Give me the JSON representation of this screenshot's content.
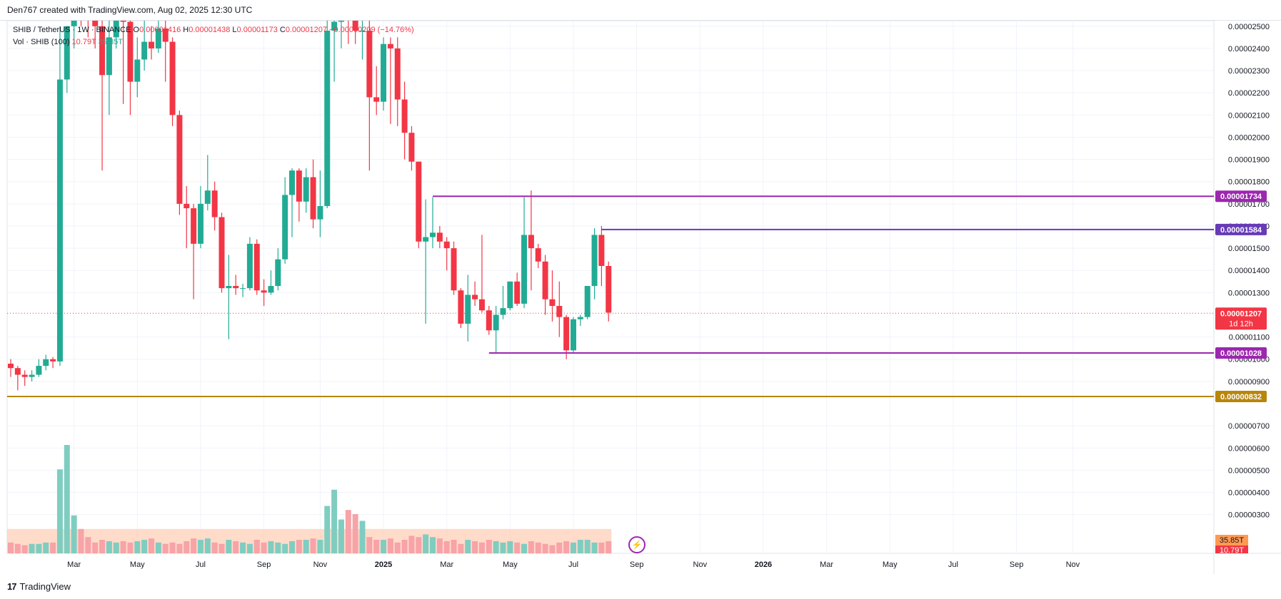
{
  "header": {
    "credit": "Den767 created with TradingView.com, Aug 02, 2025 12:30 UTC"
  },
  "legend": {
    "symbol": "SHIB / TetherUS · 1W · BINANCE",
    "o_label": "O",
    "o_value": "0.00001416",
    "h_label": "H",
    "h_value": "0.00001438",
    "l_label": "L",
    "l_value": "0.00001173",
    "c_label": "C",
    "c_value": "0.00001207",
    "change": "−0.00000209 (−14.76%)",
    "vol_label": "Vol · SHIB (100)",
    "vol_value": "10.79T",
    "vol_ma": "35.85T"
  },
  "footer": {
    "brand": "TradingView",
    "logo": "17"
  },
  "icons": {
    "flash": "lightning-icon",
    "brand": "tradingview-logo-icon"
  },
  "colors": {
    "up": "#22ab94",
    "down": "#f23645",
    "vol_up": "#7fcdc0",
    "vol_down": "#f7a3a8",
    "level_purple": "#9c27b0",
    "level_blue_purple": "#673ab7",
    "level_gold": "#b8860b",
    "current_price": "#f23645",
    "vol_ma_fill": "#ffccb3",
    "vol_ma_label": "#ff9a52"
  },
  "chart_data": {
    "type": "candlestick",
    "title": "SHIB / TetherUS · 1W · BINANCE",
    "ylim": [
      2.25e-06,
      2.525e-05
    ],
    "y_ticks": [
      "0.00000300",
      "0.00000400",
      "0.00000500",
      "0.00000600",
      "0.00000700",
      "0.00000900",
      "0.00001000",
      "0.00001100",
      "0.00001300",
      "0.00001400",
      "0.00001500",
      "0.00001600",
      "0.00001700",
      "0.00001800",
      "0.00001900",
      "0.00002000",
      "0.00002100",
      "0.00002200",
      "0.00002300",
      "0.00002400",
      "0.00002500"
    ],
    "y_tick_values": [
      3e-06,
      4e-06,
      5e-06,
      6e-06,
      7e-06,
      9e-06,
      1e-05,
      1.1e-05,
      1.3e-05,
      1.4e-05,
      1.5e-05,
      1.6e-05,
      1.7e-05,
      1.8e-05,
      1.9e-05,
      2e-05,
      2.1e-05,
      2.2e-05,
      2.3e-05,
      2.4e-05,
      2.5e-05
    ],
    "x_labels": [
      {
        "label": "Mar",
        "week": 9
      },
      {
        "label": "May",
        "week": 18
      },
      {
        "label": "Jul",
        "week": 27
      },
      {
        "label": "Sep",
        "week": 36
      },
      {
        "label": "Nov",
        "week": 44
      },
      {
        "label": "2025",
        "week": 53
      },
      {
        "label": "Mar",
        "week": 62
      },
      {
        "label": "May",
        "week": 71
      },
      {
        "label": "Jul",
        "week": 80
      },
      {
        "label": "Sep",
        "week": 89
      },
      {
        "label": "Nov",
        "week": 98
      },
      {
        "label": "2026",
        "week": 107
      },
      {
        "label": "Mar",
        "week": 116
      },
      {
        "label": "May",
        "week": 125
      },
      {
        "label": "Jul",
        "week": 134
      },
      {
        "label": "Sep",
        "week": 143
      },
      {
        "label": "Nov",
        "week": 151
      }
    ],
    "candles": [
      [
        9.8e-06,
        9.6e-06,
        9.2e-06,
        1e-05
      ],
      [
        9.6e-06,
        9.3e-06,
        8.6e-06,
        9.7e-06
      ],
      [
        9.3e-06,
        9.2e-06,
        8.8e-06,
        9.5e-06
      ],
      [
        9.2e-06,
        9.3e-06,
        9e-06,
        9.5e-06
      ],
      [
        9.3e-06,
        9.7e-06,
        9.2e-06,
        1e-05
      ],
      [
        9.7e-06,
        1e-05,
        9.5e-06,
        1.02e-05
      ],
      [
        1e-05,
        9.9e-06,
        9.6e-06,
        1.01e-05
      ],
      [
        9.9e-06,
        2.26e-05,
        9.7e-06,
        2.5e-05
      ],
      [
        2.26e-05,
        2.5e-05,
        2.2e-05,
        2.5e-05
      ],
      [
        2.5e-05,
        2.65e-05,
        2.4e-05,
        2.7e-05
      ],
      [
        2.65e-05,
        2.6e-05,
        2.5e-05,
        2.8e-05
      ],
      [
        2.6e-05,
        2.55e-05,
        2.45e-05,
        2.7e-05
      ],
      [
        2.55e-05,
        2.5e-05,
        2.4e-05,
        2.65e-05
      ],
      [
        2.5e-05,
        2.28e-05,
        1.85e-05,
        2.55e-05
      ],
      [
        2.28e-05,
        2.45e-05,
        2.1e-05,
        2.55e-05
      ],
      [
        2.45e-05,
        2.6e-05,
        2.4e-05,
        2.75e-05
      ],
      [
        2.6e-05,
        2.52e-05,
        2.15e-05,
        2.7e-05
      ],
      [
        2.52e-05,
        2.25e-05,
        2.1e-05,
        2.6e-05
      ],
      [
        2.25e-05,
        2.35e-05,
        2.18e-05,
        2.45e-05
      ],
      [
        2.35e-05,
        2.43e-05,
        2.3e-05,
        2.55e-05
      ],
      [
        2.43e-05,
        2.4e-05,
        2.35e-05,
        2.5e-05
      ],
      [
        2.4e-05,
        2.49e-05,
        2.38e-05,
        2.6e-05
      ],
      [
        2.49e-05,
        2.43e-05,
        2.25e-05,
        2.55e-05
      ],
      [
        2.43e-05,
        2.1e-05,
        2.05e-05,
        2.45e-05
      ],
      [
        2.1e-05,
        1.7e-05,
        1.65e-05,
        2.12e-05
      ],
      [
        1.7e-05,
        1.68e-05,
        1.5e-05,
        1.78e-05
      ],
      [
        1.68e-05,
        1.52e-05,
        1.27e-05,
        1.7e-05
      ],
      [
        1.52e-05,
        1.7e-05,
        1.5e-05,
        1.78e-05
      ],
      [
        1.7e-05,
        1.76e-05,
        1.67e-05,
        1.92e-05
      ],
      [
        1.76e-05,
        1.64e-05,
        1.58e-05,
        1.8e-05
      ],
      [
        1.64e-05,
        1.32e-05,
        1.3e-05,
        1.66e-05
      ],
      [
        1.32e-05,
        1.33e-05,
        1.09e-05,
        1.47e-05
      ],
      [
        1.33e-05,
        1.32e-05,
        1.29e-05,
        1.38e-05
      ],
      [
        1.32e-05,
        1.32e-05,
        1.28e-05,
        1.34e-05
      ],
      [
        1.32e-05,
        1.52e-05,
        1.31e-05,
        1.55e-05
      ],
      [
        1.52e-05,
        1.31e-05,
        1.29e-05,
        1.54e-05
      ],
      [
        1.31e-05,
        1.3e-05,
        1.24e-05,
        1.36e-05
      ],
      [
        1.3e-05,
        1.33e-05,
        1.29e-05,
        1.4e-05
      ],
      [
        1.33e-05,
        1.45e-05,
        1.31e-05,
        1.5e-05
      ],
      [
        1.45e-05,
        1.74e-05,
        1.43e-05,
        1.82e-05
      ],
      [
        1.74e-05,
        1.85e-05,
        1.55e-05,
        1.86e-05
      ],
      [
        1.85e-05,
        1.71e-05,
        1.62e-05,
        1.86e-05
      ],
      [
        1.71e-05,
        1.82e-05,
        1.66e-05,
        1.86e-05
      ],
      [
        1.82e-05,
        1.63e-05,
        1.59e-05,
        1.9e-05
      ],
      [
        1.63e-05,
        1.69e-05,
        1.55e-05,
        1.85e-05
      ],
      [
        1.69e-05,
        2.48e-05,
        1.68e-05,
        2.6e-05
      ],
      [
        2.48e-05,
        2.52e-05,
        2.25e-05,
        2.62e-05
      ],
      [
        2.52e-05,
        2.56e-05,
        2.4e-05,
        2.65e-05
      ],
      [
        2.56e-05,
        2.55e-05,
        2.42e-05,
        2.62e-05
      ],
      [
        2.55e-05,
        2.48e-05,
        2.42e-05,
        2.58e-05
      ],
      [
        2.48e-05,
        2.48e-05,
        2.35e-05,
        2.58e-05
      ],
      [
        2.48e-05,
        2.18e-05,
        1.85e-05,
        2.55e-05
      ],
      [
        2.18e-05,
        2.16e-05,
        2.1e-05,
        2.32e-05
      ],
      [
        2.16e-05,
        2.42e-05,
        2.12e-05,
        2.45e-05
      ],
      [
        2.42e-05,
        2.4e-05,
        2.06e-05,
        2.45e-05
      ],
      [
        2.4e-05,
        2.17e-05,
        2.05e-05,
        2.45e-05
      ],
      [
        2.17e-05,
        2.02e-05,
        1.9e-05,
        2.25e-05
      ],
      [
        2.02e-05,
        1.89e-05,
        1.85e-05,
        2.05e-05
      ],
      [
        1.89e-05,
        1.53e-05,
        1.5e-05,
        1.89e-05
      ],
      [
        1.53e-05,
        1.55e-05,
        1.16e-05,
        1.72e-05
      ],
      [
        1.55e-05,
        1.57e-05,
        1.5e-05,
        1.73e-05
      ],
      [
        1.57e-05,
        1.53e-05,
        1.5e-05,
        1.6e-05
      ],
      [
        1.53e-05,
        1.5e-05,
        1.4e-05,
        1.55e-05
      ],
      [
        1.5e-05,
        1.31e-05,
        1.29e-05,
        1.53e-05
      ],
      [
        1.31e-05,
        1.16e-05,
        1.14e-05,
        1.32e-05
      ],
      [
        1.16e-05,
        1.29e-05,
        1.08e-05,
        1.38e-05
      ],
      [
        1.29e-05,
        1.27e-05,
        1.24e-05,
        1.35e-05
      ],
      [
        1.27e-05,
        1.22e-05,
        1.21e-05,
        1.56e-05
      ],
      [
        1.22e-05,
        1.13e-05,
        1.11e-05,
        1.24e-05
      ],
      [
        1.13e-05,
        1.2e-05,
        1.03e-05,
        1.24e-05
      ],
      [
        1.2e-05,
        1.23e-05,
        1.18e-05,
        1.33e-05
      ],
      [
        1.23e-05,
        1.35e-05,
        1.22e-05,
        1.35e-05
      ],
      [
        1.35e-05,
        1.25e-05,
        1.24e-05,
        1.39e-05
      ],
      [
        1.25e-05,
        1.56e-05,
        1.23e-05,
        1.73e-05
      ],
      [
        1.56e-05,
        1.5e-05,
        1.31e-05,
        1.76e-05
      ],
      [
        1.5e-05,
        1.44e-05,
        1.41e-05,
        1.52e-05
      ],
      [
        1.44e-05,
        1.27e-05,
        1.2e-05,
        1.47e-05
      ],
      [
        1.27e-05,
        1.24e-05,
        1.17e-05,
        1.4e-05
      ],
      [
        1.24e-05,
        1.19e-05,
        1.1e-05,
        1.35e-05
      ],
      [
        1.19e-05,
        1.04e-05,
        1e-05,
        1.2e-05
      ],
      [
        1.04e-05,
        1.18e-05,
        1.03e-05,
        1.19e-05
      ],
      [
        1.18e-05,
        1.19e-05,
        1.15e-05,
        1.2e-05
      ],
      [
        1.19e-05,
        1.33e-05,
        1.18e-05,
        1.33e-05
      ],
      [
        1.33e-05,
        1.56e-05,
        1.27e-05,
        1.59e-05
      ],
      [
        1.56e-05,
        1.42e-05,
        1.33e-05,
        1.6e-05
      ],
      [
        1.42e-05,
        1.21e-05,
        1.17e-05,
        1.44e-05
      ]
    ],
    "volume": [
      8,
      7,
      6,
      7,
      7,
      8,
      8,
      62,
      80,
      28,
      18,
      12,
      8,
      10,
      9,
      8,
      9,
      8,
      9,
      10,
      11,
      8,
      7,
      8,
      7,
      9,
      11,
      10,
      11,
      8,
      7,
      10,
      9,
      8,
      7,
      10,
      8,
      9,
      8,
      7,
      9,
      10,
      10,
      11,
      10,
      35,
      47,
      25,
      32,
      29,
      24,
      12,
      10,
      10,
      11,
      8,
      10,
      13,
      12,
      14,
      12,
      11,
      9,
      10,
      7,
      10,
      9,
      8,
      10,
      9,
      8,
      9,
      8,
      7,
      9,
      8,
      7,
      6,
      8,
      9,
      8,
      10,
      10,
      8,
      8,
      9
    ],
    "volume_ma": 18,
    "volume_ylim": [
      0,
      100
    ],
    "horizontal_levels": [
      {
        "label": "0.00001734",
        "value": 1.734e-05,
        "start_week": 60,
        "color": "purple"
      },
      {
        "label": "0.00001584",
        "value": 1.584e-05,
        "start_week": 84,
        "color": "blue-purple"
      },
      {
        "label": "0.00001028",
        "value": 1.028e-05,
        "start_week": 68,
        "color": "purple"
      },
      {
        "label": "0.00000832",
        "value": 8.32e-06,
        "start_week": 0,
        "color": "gold"
      }
    ],
    "current_price": {
      "label": "0.00001207",
      "value": 1.207e-05,
      "countdown": "1d 12h"
    },
    "volume_labels": {
      "ma": "35.85T",
      "current": "10.79T"
    }
  }
}
